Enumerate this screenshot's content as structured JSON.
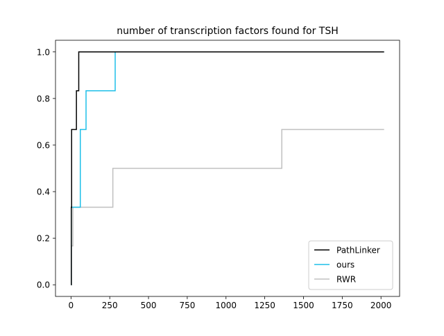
{
  "chart_data": {
    "type": "line",
    "title": "number of transcription factors found for TSH",
    "xlabel": "",
    "ylabel": "",
    "xlim": [
      -100,
      2120
    ],
    "ylim": [
      -0.05,
      1.05
    ],
    "x_ticks": [
      0,
      250,
      500,
      750,
      1000,
      1250,
      1500,
      1750,
      2000
    ],
    "x_tick_labels": [
      "0",
      "250",
      "500",
      "750",
      "1000",
      "1250",
      "1500",
      "1750",
      "2000"
    ],
    "y_ticks": [
      0.0,
      0.2,
      0.4,
      0.6,
      0.8,
      1.0
    ],
    "y_tick_labels": [
      "0.0",
      "0.2",
      "0.4",
      "0.6",
      "0.8",
      "1.0"
    ],
    "grid": false,
    "legend_position": "bottom-right",
    "series": [
      {
        "name": "PathLinker",
        "color": "#000000",
        "step": true,
        "x": [
          0,
          2,
          4,
          15,
          35,
          50,
          2020
        ],
        "y": [
          0,
          0.333,
          0.667,
          0.667,
          0.833,
          1.0,
          1.0
        ]
      },
      {
        "name": "ours",
        "color": "#1ebfe8",
        "step": true,
        "x": [
          0,
          2,
          60,
          97,
          285,
          2020
        ],
        "y": [
          0,
          0.333,
          0.667,
          0.833,
          1.0,
          1.0
        ]
      },
      {
        "name": "RWR",
        "color": "#c0c0c0",
        "step": true,
        "x": [
          0,
          3,
          7,
          12,
          270,
          1360,
          2020
        ],
        "y": [
          0,
          0.167,
          0.167,
          0.333,
          0.5,
          0.667,
          0.667
        ]
      }
    ]
  }
}
